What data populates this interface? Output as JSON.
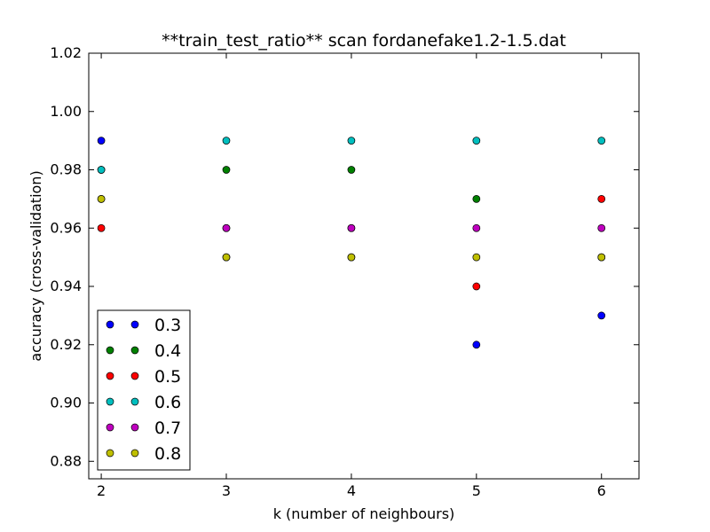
{
  "chart_data": {
    "type": "scatter",
    "title": "**train_test_ratio** scan fordanefake1.2-1.5.dat",
    "xlabel": "k (number of neighbours)",
    "ylabel": "accuracy (cross-validation)",
    "xlim": [
      1.9,
      6.3
    ],
    "ylim": [
      0.874,
      1.02
    ],
    "x_ticks": [
      2,
      3,
      4,
      5,
      6
    ],
    "x_tick_labels": [
      "2",
      "3",
      "4",
      "5",
      "6"
    ],
    "y_ticks": [
      0.88,
      0.9,
      0.92,
      0.94,
      0.96,
      0.98,
      1.0,
      1.02
    ],
    "y_tick_labels": [
      "0.88",
      "0.90",
      "0.92",
      "0.94",
      "0.96",
      "0.98",
      "1.00",
      "1.02"
    ],
    "grid": false,
    "legend_position": "bottom-left",
    "series": [
      {
        "name": "0.3",
        "color": "#0000ff",
        "x": [
          2,
          3,
          4,
          5,
          6
        ],
        "values": [
          0.99,
          0.96,
          0.96,
          0.92,
          0.93
        ]
      },
      {
        "name": "0.4",
        "color": "#008000",
        "x": [
          2,
          3,
          4,
          5,
          6
        ],
        "values": [
          0.98,
          0.98,
          0.98,
          0.97,
          0.95
        ]
      },
      {
        "name": "0.5",
        "color": "#ff0000",
        "x": [
          2,
          3,
          4,
          5,
          6
        ],
        "values": [
          0.96,
          0.95,
          0.95,
          0.94,
          0.97
        ]
      },
      {
        "name": "0.6",
        "color": "#00bfbf",
        "x": [
          2,
          3,
          4,
          5,
          6
        ],
        "values": [
          0.98,
          0.99,
          0.99,
          0.99,
          0.99
        ]
      },
      {
        "name": "0.7",
        "color": "#bf00bf",
        "x": [
          2,
          3,
          4,
          5,
          6
        ],
        "values": [
          0.97,
          0.96,
          0.96,
          0.96,
          0.96
        ]
      },
      {
        "name": "0.8",
        "color": "#bfbf00",
        "x": [
          2,
          3,
          4,
          5,
          6
        ],
        "values": [
          0.97,
          0.95,
          0.95,
          0.95,
          0.95
        ]
      }
    ]
  }
}
